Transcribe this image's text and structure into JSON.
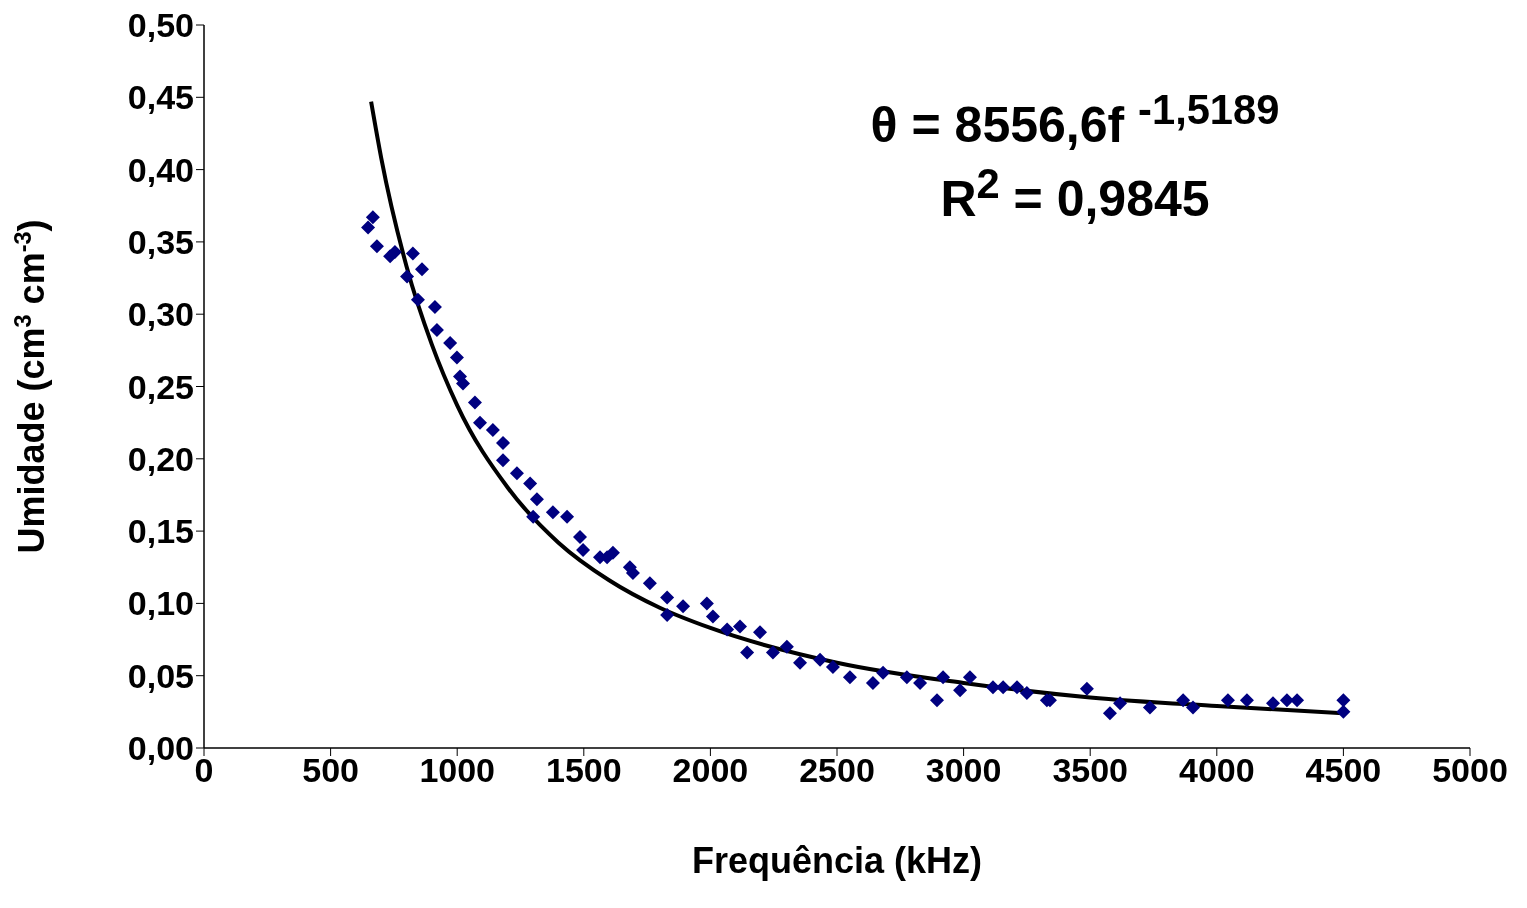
{
  "chart_data": {
    "type": "scatter",
    "xlabel": "Frequência (kHz)",
    "ylabel": "Umidade (cm$^{3}$ cm$^{-3}$)",
    "xlim": [
      0,
      5000
    ],
    "xticks": [
      0,
      500,
      1000,
      1500,
      2000,
      2500,
      3000,
      3500,
      4000,
      4500,
      5000
    ],
    "ylim": [
      0,
      0.5
    ],
    "yticks": [
      {
        "value": 0,
        "label": "0,00"
      },
      {
        "value": 0.05,
        "label": "0,05"
      },
      {
        "value": 0.1,
        "label": "0,10"
      },
      {
        "value": 0.15,
        "label": "0,15"
      },
      {
        "value": 0.2,
        "label": "0,20"
      },
      {
        "value": 0.25,
        "label": "0,25"
      },
      {
        "value": 0.3,
        "label": "0,30"
      },
      {
        "value": 0.35,
        "label": "0,35"
      },
      {
        "value": 0.4,
        "label": "0,40"
      },
      {
        "value": 0.45,
        "label": "0,45"
      },
      {
        "value": 0.5,
        "label": "0,50"
      }
    ],
    "marker": "diamond",
    "annotations": [
      "θ = 8556,6f $^{-1,5189}$",
      "R$^{2}$ = 0,9845"
    ],
    "series": [
      {
        "color": "#000080",
        "x": [
          648,
          667,
          683,
          735,
          754,
          825,
          861,
          802,
          845,
          912,
          920,
          972,
          999,
          1011,
          1023,
          1070,
          1090,
          1141,
          1181,
          1181,
          1236,
          1288,
          1315,
          1300,
          1378,
          1434,
          1485,
          1497,
          1564,
          1592,
          1615,
          1682,
          1694,
          1761,
          1829,
          1829,
          1892,
          1986,
          2010,
          2066,
          2117,
          2145,
          2196,
          2247,
          2302,
          2354,
          2433,
          2484,
          2551,
          2642,
          2682,
          2776,
          2828,
          2895,
          2919,
          2986,
          3025,
          3116,
          3156,
          3211,
          3250,
          3329,
          3341,
          3487,
          3578,
          3618,
          3736,
          3867,
          3906,
          4044,
          4119,
          4222,
          4277,
          4317,
          4500,
          4500
        ],
        "values": [
          0.36,
          0.367,
          0.347,
          0.34,
          0.343,
          0.342,
          0.331,
          0.326,
          0.31,
          0.305,
          0.289,
          0.28,
          0.27,
          0.257,
          0.252,
          0.239,
          0.225,
          0.22,
          0.211,
          0.199,
          0.19,
          0.183,
          0.172,
          0.16,
          0.163,
          0.16,
          0.146,
          0.137,
          0.132,
          0.132,
          0.135,
          0.125,
          0.121,
          0.114,
          0.104,
          0.092,
          0.098,
          0.1,
          0.091,
          0.082,
          0.084,
          0.066,
          0.08,
          0.066,
          0.07,
          0.059,
          0.061,
          0.056,
          0.049,
          0.045,
          0.052,
          0.049,
          0.045,
          0.033,
          0.049,
          0.04,
          0.049,
          0.042,
          0.042,
          0.042,
          0.038,
          0.033,
          0.033,
          0.041,
          0.024,
          0.031,
          0.028,
          0.033,
          0.028,
          0.033,
          0.033,
          0.031,
          0.033,
          0.033,
          0.033,
          0.025
        ]
      },
      {
        "type": "line",
        "color": "#000000",
        "line_style": "solid",
        "marker": "none",
        "x": [
          660,
          700,
          800,
          900,
          1000,
          1200,
          1400,
          1600,
          1800,
          2000,
          2500,
          3000,
          3500,
          4000,
          4500
        ],
        "values": [
          0.447,
          0.408,
          0.333,
          0.279,
          0.237,
          0.18,
          0.142,
          0.116,
          0.097,
          0.083,
          0.059,
          0.045,
          0.035,
          0.029,
          0.024
        ]
      }
    ]
  }
}
